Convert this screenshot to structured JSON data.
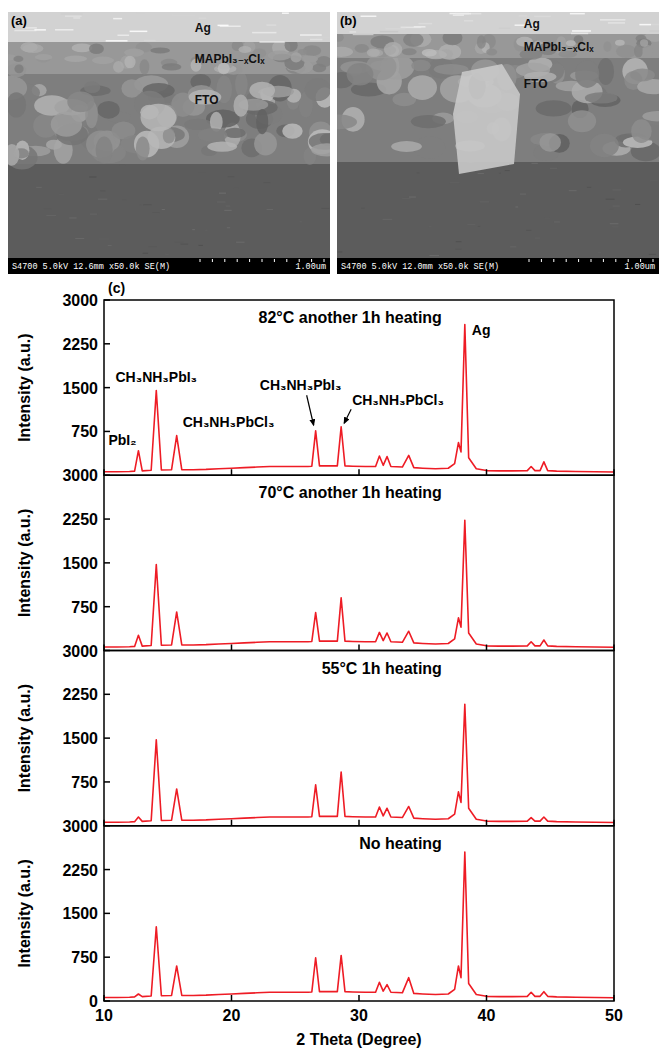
{
  "images": [
    {
      "label": "(a)",
      "layers": [
        "Ag",
        "MAPbI₃₋ₓClₓ",
        "FTO"
      ],
      "info": "S4700 5.0kV 12.6mm x50.0k SE(M)",
      "scale_bar": "1.00um"
    },
    {
      "label": "(b)",
      "layers": [
        "Ag",
        "MAPbI₃₋ₓClₓ",
        "FTO"
      ],
      "info": "S4700 5.0kV 12.0mm x50.0k SE(M)",
      "scale_bar": "1.00um"
    }
  ],
  "panel_label": "(c)",
  "chart_data": [
    {
      "type": "line",
      "title": "82°C another 1h heating",
      "ylabel": "Intensity (a.u.)",
      "x": [
        10,
        11,
        12,
        12.4,
        12.7,
        13.0,
        13.7,
        14.1,
        14.5,
        15.3,
        15.7,
        16.1,
        17,
        18,
        19,
        20,
        21,
        22,
        23,
        24,
        25,
        26,
        26.3,
        26.6,
        26.9,
        27.5,
        28.3,
        28.6,
        28.9,
        29.5,
        30.5,
        31.3,
        31.6,
        31.9,
        32.2,
        32.5,
        33.4,
        33.9,
        34.3,
        35,
        36,
        37,
        37.5,
        37.8,
        38.0,
        38.3,
        38.6,
        39.2,
        40,
        41,
        42,
        43.2,
        43.5,
        43.8,
        44.2,
        44.5,
        44.8,
        45.5,
        47,
        48.5,
        50
      ],
      "series": [
        {
          "color": "#ee1c25",
          "values": [
            60,
            60,
            65,
            70,
            420,
            75,
            85,
            1450,
            90,
            95,
            680,
            95,
            95,
            100,
            110,
            120,
            130,
            140,
            150,
            150,
            150,
            150,
            155,
            760,
            160,
            160,
            160,
            830,
            160,
            155,
            150,
            150,
            330,
            170,
            320,
            150,
            140,
            340,
            130,
            120,
            110,
            120,
            200,
            560,
            400,
            2580,
            300,
            110,
            80,
            75,
            75,
            80,
            150,
            80,
            80,
            230,
            80,
            70,
            65,
            60,
            55
          ]
        }
      ],
      "xlim": [
        10,
        50
      ],
      "xticks": [
        10,
        20,
        30,
        40,
        50
      ],
      "ylim": [
        0,
        3000
      ],
      "yticks": [
        750,
        1500,
        2250,
        3000
      ],
      "tick_labels": "y",
      "annotations": [
        {
          "text": "PbI₂",
          "x": 12.7
        },
        {
          "text": "CH₃NH₃PbI₃",
          "x": 14.1
        },
        {
          "text": "CH₃NH₃PbCl₃",
          "x": 15.7
        },
        {
          "text": "CH₃NH₃PbI₃",
          "x": 26.6
        },
        {
          "text": "CH₃NH₃PbCl₃",
          "x": 28.6
        },
        {
          "text": "Ag",
          "x": 38.3
        }
      ]
    },
    {
      "type": "line",
      "title": "70°C another 1h heating",
      "ylabel": "Intensity (a.u.)",
      "x": [
        10,
        11,
        12,
        12.4,
        12.7,
        13.0,
        13.7,
        14.1,
        14.5,
        15.3,
        15.7,
        16.1,
        17,
        18,
        19,
        20,
        21,
        22,
        23,
        24,
        25,
        26,
        26.3,
        26.6,
        26.9,
        27.5,
        28.3,
        28.6,
        28.9,
        29.5,
        30.5,
        31.3,
        31.6,
        31.9,
        32.2,
        32.5,
        33.4,
        33.9,
        34.3,
        35,
        36,
        37,
        37.5,
        37.8,
        38.0,
        38.3,
        38.6,
        39.2,
        40,
        41,
        42,
        43.2,
        43.5,
        43.8,
        44.2,
        44.5,
        44.8,
        45.5,
        47,
        48.5,
        50
      ],
      "series": [
        {
          "color": "#ee1c25",
          "values": [
            60,
            60,
            65,
            70,
            260,
            75,
            85,
            1470,
            90,
            95,
            660,
            95,
            95,
            100,
            110,
            120,
            130,
            140,
            150,
            150,
            150,
            150,
            155,
            650,
            160,
            160,
            160,
            900,
            160,
            155,
            150,
            150,
            310,
            170,
            300,
            150,
            140,
            330,
            130,
            120,
            110,
            120,
            200,
            560,
            400,
            2230,
            300,
            110,
            80,
            75,
            75,
            80,
            150,
            80,
            80,
            180,
            80,
            70,
            65,
            60,
            55
          ]
        }
      ],
      "xlim": [
        10,
        50
      ],
      "xticks": [
        10,
        20,
        30,
        40,
        50
      ],
      "ylim": [
        0,
        3000
      ],
      "yticks": [
        750,
        1500,
        2250,
        3000
      ],
      "tick_labels": "y"
    },
    {
      "type": "line",
      "title": "55°C 1h heating",
      "ylabel": "Intensity (a.u.)",
      "x": [
        10,
        11,
        12,
        12.4,
        12.7,
        13.0,
        13.7,
        14.1,
        14.5,
        15.3,
        15.7,
        16.1,
        17,
        18,
        19,
        20,
        21,
        22,
        23,
        24,
        25,
        26,
        26.3,
        26.6,
        26.9,
        27.5,
        28.3,
        28.6,
        28.9,
        29.5,
        30.5,
        31.3,
        31.6,
        31.9,
        32.2,
        32.5,
        33.4,
        33.9,
        34.3,
        35,
        36,
        37,
        37.5,
        37.8,
        38.0,
        38.3,
        38.6,
        39.2,
        40,
        41,
        42,
        43.2,
        43.5,
        43.8,
        44.2,
        44.5,
        44.8,
        45.5,
        47,
        48.5,
        50
      ],
      "series": [
        {
          "color": "#ee1c25",
          "values": [
            60,
            60,
            65,
            70,
            150,
            75,
            85,
            1470,
            90,
            95,
            630,
            95,
            95,
            100,
            110,
            120,
            130,
            140,
            150,
            150,
            150,
            150,
            155,
            700,
            160,
            160,
            160,
            920,
            160,
            155,
            150,
            150,
            320,
            170,
            300,
            150,
            140,
            330,
            130,
            120,
            110,
            120,
            200,
            580,
            400,
            2080,
            300,
            110,
            80,
            75,
            75,
            80,
            140,
            80,
            80,
            150,
            80,
            70,
            65,
            60,
            55
          ]
        }
      ],
      "xlim": [
        10,
        50
      ],
      "xticks": [
        10,
        20,
        30,
        40,
        50
      ],
      "ylim": [
        0,
        3000
      ],
      "yticks": [
        750,
        1500,
        2250,
        3000
      ],
      "tick_labels": "y"
    },
    {
      "type": "line",
      "title": "No heating",
      "ylabel": "Intensity (a.u.)",
      "xlabel": "2 Theta (Degree)",
      "x": [
        10,
        11,
        12,
        12.4,
        12.7,
        13.0,
        13.7,
        14.1,
        14.5,
        15.3,
        15.7,
        16.1,
        17,
        18,
        19,
        20,
        21,
        22,
        23,
        24,
        25,
        26,
        26.3,
        26.6,
        26.9,
        27.5,
        28.3,
        28.6,
        28.9,
        29.5,
        30.5,
        31.3,
        31.6,
        31.9,
        32.2,
        32.5,
        33.4,
        33.9,
        34.3,
        35,
        36,
        37,
        37.5,
        37.8,
        38.0,
        38.3,
        38.6,
        39.2,
        40,
        41,
        42,
        43.2,
        43.5,
        43.8,
        44.2,
        44.5,
        44.8,
        45.5,
        47,
        48.5,
        50
      ],
      "series": [
        {
          "color": "#ee1c25",
          "values": [
            60,
            60,
            65,
            70,
            120,
            75,
            85,
            1270,
            90,
            95,
            600,
            95,
            95,
            100,
            110,
            120,
            130,
            140,
            150,
            150,
            150,
            150,
            155,
            740,
            160,
            160,
            160,
            780,
            160,
            155,
            150,
            150,
            320,
            170,
            280,
            150,
            140,
            400,
            130,
            120,
            110,
            120,
            200,
            600,
            400,
            2550,
            300,
            110,
            80,
            75,
            75,
            80,
            150,
            80,
            80,
            160,
            80,
            70,
            65,
            60,
            55
          ]
        }
      ],
      "xlim": [
        10,
        50
      ],
      "xticks": [
        10,
        20,
        30,
        40,
        50
      ],
      "ylim": [
        0,
        3000
      ],
      "yticks": [
        0,
        750,
        1500,
        2250,
        3000
      ]
    }
  ]
}
